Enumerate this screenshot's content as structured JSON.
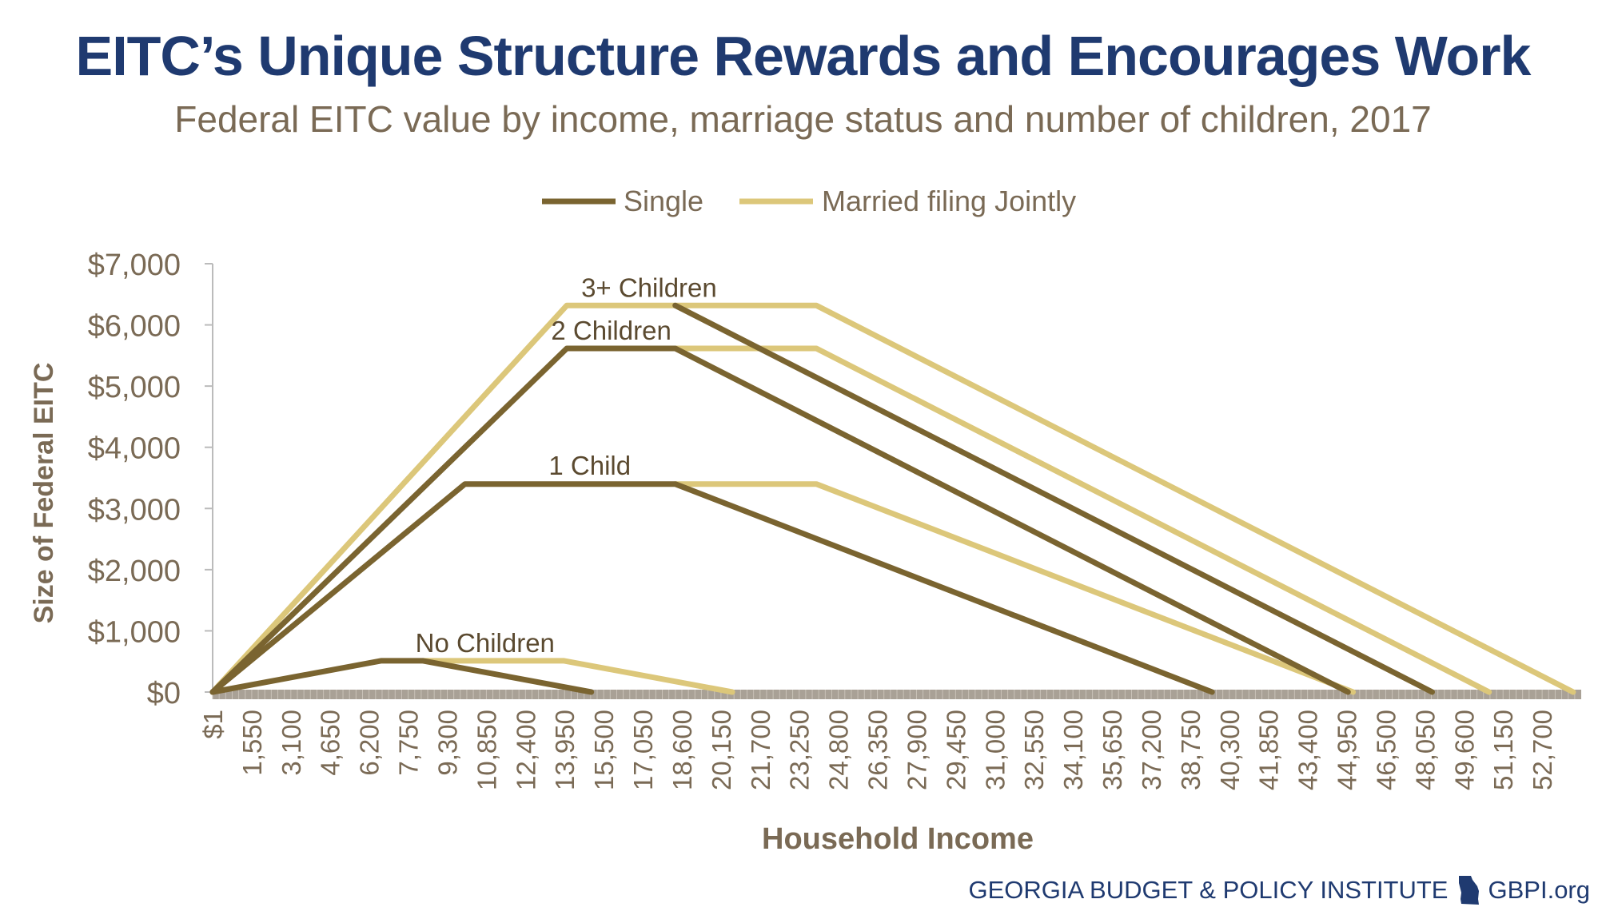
{
  "title": "EITC’s Unique Structure Rewards and Encourages Work",
  "subtitle": "Federal EITC value by income, marriage status and number of children, 2017",
  "footer": {
    "org": "GEORGIA BUDGET & POLICY INSTITUTE",
    "site": "GBPI.org"
  },
  "colors": {
    "single": "#7a6430",
    "married": "#dcc77a",
    "title": "#1f3a70",
    "text": "#7a6a55"
  },
  "chart_data": {
    "type": "line",
    "xlabel": "Household Income",
    "ylabel": "Size of Federal EITC",
    "ylim": [
      0,
      7000
    ],
    "xlim": [
      1,
      54250
    ],
    "legend": {
      "placement": "top",
      "entries": [
        "Single",
        "Married filing Jointly"
      ]
    },
    "x_tick_labels": [
      "$1",
      "1,550",
      "3,100",
      "4,650",
      "6,200",
      "7,750",
      "9,300",
      "10,850",
      "12,400",
      "13,950",
      "15,500",
      "17,050",
      "18,600",
      "20,150",
      "21,700",
      "23,250",
      "24,800",
      "26,350",
      "27,900",
      "29,450",
      "31,000",
      "32,550",
      "34,100",
      "35,650",
      "37,200",
      "38,750",
      "40,300",
      "41,850",
      "43,400",
      "44,950",
      "46,500",
      "48,050",
      "49,600",
      "51,150",
      "52,700"
    ],
    "y_tick_labels": [
      "$0",
      "$1,000",
      "$2,000",
      "$3,000",
      "$4,000",
      "$5,000",
      "$6,000",
      "$7,000"
    ],
    "annotations": [
      "No Children",
      "1 Child",
      "2 Children",
      "3+ Children"
    ],
    "series": [
      {
        "name": "Single",
        "group": "No Children",
        "x": [
          1,
          6670,
          8340,
          15010
        ],
        "y": [
          0,
          510,
          510,
          0
        ]
      },
      {
        "name": "Married filing Jointly",
        "group": "No Children",
        "x": [
          8340,
          13930,
          20600
        ],
        "y": [
          510,
          510,
          0
        ]
      },
      {
        "name": "Single",
        "group": "1 Child",
        "x": [
          1,
          10000,
          18340,
          39617
        ],
        "y": [
          0,
          3400,
          3400,
          0
        ]
      },
      {
        "name": "Married filing Jointly",
        "group": "1 Child",
        "x": [
          18340,
          23930,
          45207
        ],
        "y": [
          3400,
          3400,
          0
        ]
      },
      {
        "name": "Single",
        "group": "2 Children",
        "x": [
          1,
          14040,
          18340,
          45007
        ],
        "y": [
          0,
          5616,
          5616,
          0
        ]
      },
      {
        "name": "Married filing Jointly",
        "group": "2 Children",
        "x": [
          18340,
          23930,
          50597
        ],
        "y": [
          5616,
          5616,
          0
        ]
      },
      {
        "name": "Married filing Jointly",
        "group": "3+ Children",
        "x": [
          1,
          14040,
          23930,
          53930
        ],
        "y": [
          0,
          6318,
          6318,
          0
        ]
      },
      {
        "name": "Single",
        "group": "3+ Children",
        "x": [
          18340,
          48340
        ],
        "y": [
          6318,
          0
        ]
      }
    ]
  }
}
